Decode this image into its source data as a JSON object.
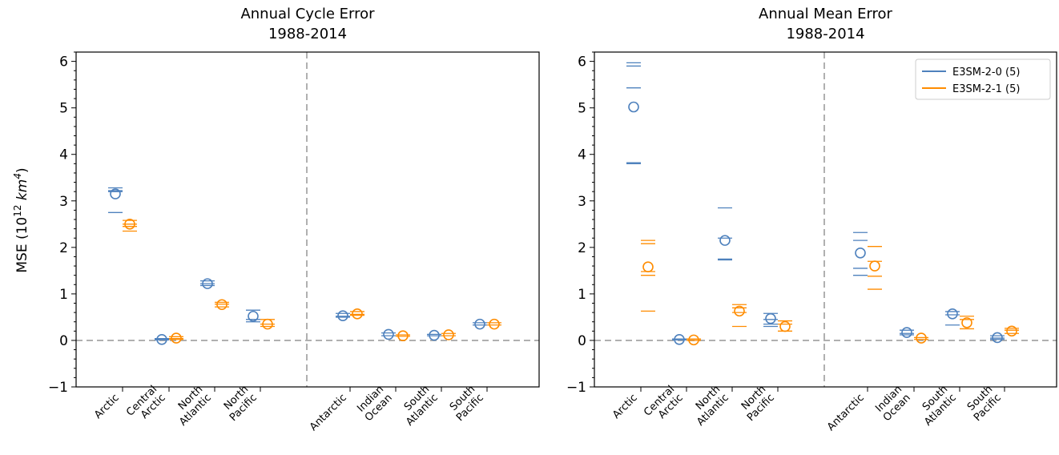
{
  "colors": {
    "series_1": "#4e81bd",
    "series_2": "#ff8c00",
    "zero_line": "#b0b0b0",
    "divider": "#b0b0b0",
    "axis": "#000000"
  },
  "figure": {
    "ylabel_text": "MSE (10",
    "ylabel_sup": "12",
    "ylabel_unit": "km",
    "ylabel_unit_sup": "4",
    "ylabel_close": ")"
  },
  "chart_data": [
    {
      "type": "scatter",
      "title": "Annual Cycle Error",
      "subtitle": "1988-2014",
      "ylabel": "MSE (10^12 km^4)",
      "ylim": [
        -1,
        6.2
      ],
      "yticks": [
        -1,
        0,
        1,
        2,
        3,
        4,
        5,
        6
      ],
      "grid": false,
      "reference_line_y": 0,
      "group_divider": true,
      "categories": [
        "Arctic",
        "Central Arctic",
        "North Atlantic",
        "North Pacific",
        "Antarctic",
        "Indian Ocean",
        "South Atlantic",
        "South Pacific"
      ],
      "category_lines": [
        [
          "Arctic"
        ],
        [
          "Central",
          "Arctic"
        ],
        [
          "North",
          "Atlantic"
        ],
        [
          "North",
          "Pacific"
        ],
        [
          "Antarctic"
        ],
        [
          "Indian",
          "Ocean"
        ],
        [
          "South",
          "Atlantic"
        ],
        [
          "South",
          "Pacific"
        ]
      ],
      "series": [
        {
          "name": "E3SM-2-0 (5)",
          "values": [
            3.15,
            0.02,
            1.22,
            0.52,
            0.53,
            0.13,
            0.11,
            0.35
          ],
          "members": [
            [
              3.28,
              3.22,
              3.2,
              2.75
            ],
            [
              0.04,
              0.02,
              0.01
            ],
            [
              1.28,
              1.22,
              1.18
            ],
            [
              0.65,
              0.45,
              0.4
            ],
            [
              0.58,
              0.52,
              0.5
            ],
            [
              0.16,
              0.1
            ],
            [
              0.13,
              0.1
            ],
            [
              0.38,
              0.33
            ]
          ]
        },
        {
          "name": "E3SM-2-1 (5)",
          "values": [
            2.5,
            0.05,
            0.77,
            0.35,
            0.57,
            0.1,
            0.12,
            0.35
          ],
          "members": [
            [
              2.58,
              2.5,
              2.45,
              2.35
            ],
            [
              0.08,
              0.04,
              0.02
            ],
            [
              0.82,
              0.78,
              0.72
            ],
            [
              0.45,
              0.35,
              0.3
            ],
            [
              0.62,
              0.56,
              0.54
            ],
            [
              0.12,
              0.09
            ],
            [
              0.15,
              0.1
            ],
            [
              0.38,
              0.33
            ]
          ]
        }
      ],
      "legend": null
    },
    {
      "type": "scatter",
      "title": "Annual Mean Error",
      "subtitle": "1988-2014",
      "ylim": [
        -1,
        6.2
      ],
      "yticks": [
        -1,
        0,
        1,
        2,
        3,
        4,
        5,
        6
      ],
      "grid": false,
      "reference_line_y": 0,
      "group_divider": true,
      "categories": [
        "Arctic",
        "Central Arctic",
        "North Atlantic",
        "North Pacific",
        "Antarctic",
        "Indian Ocean",
        "South Atlantic",
        "South Pacific"
      ],
      "category_lines": [
        [
          "Arctic"
        ],
        [
          "Central",
          "Arctic"
        ],
        [
          "North",
          "Atlantic"
        ],
        [
          "North",
          "Pacific"
        ],
        [
          "Antarctic"
        ],
        [
          "Indian",
          "Ocean"
        ],
        [
          "South",
          "Atlantic"
        ],
        [
          "South",
          "Pacific"
        ]
      ],
      "series": [
        {
          "name": "E3SM-2-0 (5)",
          "values": [
            5.02,
            0.02,
            2.15,
            0.47,
            1.88,
            0.17,
            0.57,
            0.06
          ],
          "members": [
            [
              5.97,
              5.9,
              5.43,
              3.82,
              3.8
            ],
            [
              0.03,
              0.01
            ],
            [
              2.85,
              2.2,
              1.75,
              1.73
            ],
            [
              0.58,
              0.45,
              0.35,
              0.3
            ],
            [
              2.32,
              2.15,
              1.55,
              1.4
            ],
            [
              0.22,
              0.15,
              0.12
            ],
            [
              0.62,
              0.55,
              0.33
            ],
            [
              0.1,
              0.05,
              0.02
            ]
          ]
        },
        {
          "name": "E3SM-2-1 (5)",
          "values": [
            1.58,
            0.01,
            0.63,
            0.3,
            1.6,
            0.05,
            0.38,
            0.2
          ],
          "members": [
            [
              2.15,
              2.08,
              1.48,
              1.4,
              0.63
            ],
            [
              0.03,
              0.0
            ],
            [
              0.77,
              0.7,
              0.6,
              0.3
            ],
            [
              0.42,
              0.35,
              0.2
            ],
            [
              2.02,
              1.7,
              1.38,
              1.1
            ],
            [
              0.06,
              0.02
            ],
            [
              0.52,
              0.45,
              0.25
            ],
            [
              0.26,
              0.22,
              0.15
            ]
          ]
        }
      ],
      "legend": {
        "position": "top-right",
        "entries": [
          "E3SM-2-0 (5)",
          "E3SM-2-1 (5)"
        ]
      }
    }
  ]
}
